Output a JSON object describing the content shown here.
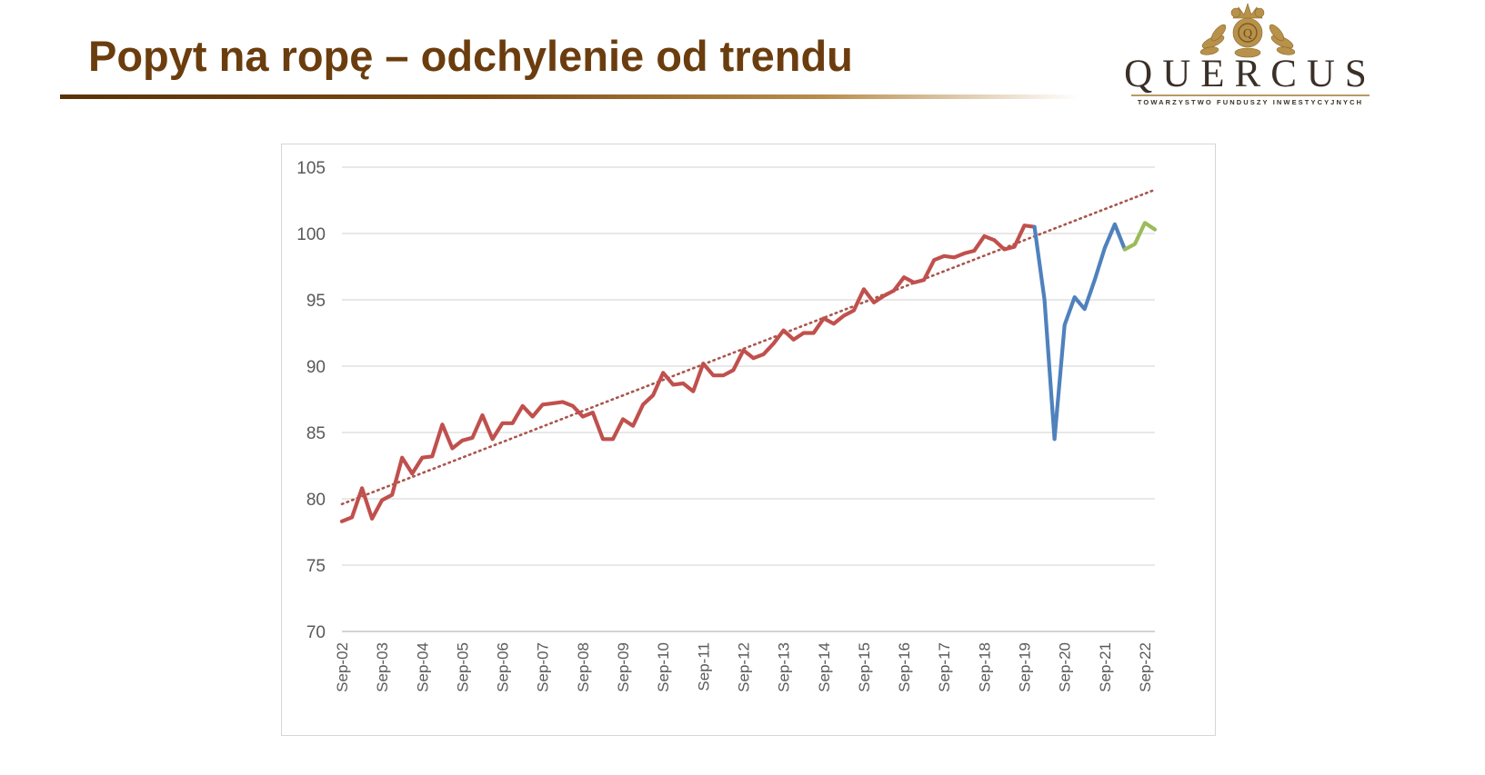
{
  "slide": {
    "title": "Popyt na ropę – odchylenie od trendu"
  },
  "logo": {
    "name": "QUERCUS",
    "subtitle": "TOWARZYSTWO FUNDUSZY INWESTYCYJNYCH"
  },
  "colors": {
    "title": "#6b3d0e",
    "series_historical": "#c0504d",
    "series_covid": "#4f81bd",
    "series_forecast": "#9bbb59",
    "trend": "#a9554d",
    "grid": "#d9d9d9"
  },
  "chart_data": {
    "type": "line",
    "title": "",
    "xlabel": "",
    "ylabel": "",
    "ylim": [
      70,
      105
    ],
    "yticks": [
      "70",
      "75",
      "80",
      "85",
      "90",
      "95",
      "100",
      "105"
    ],
    "grid": "horizontal",
    "x_tick_labels": [
      "Sep-02",
      "Sep-03",
      "Sep-04",
      "Sep-05",
      "Sep-06",
      "Sep-07",
      "Sep-08",
      "Sep-09",
      "Sep-10",
      "Sep-11",
      "Sep-12",
      "Sep-13",
      "Sep-14",
      "Sep-15",
      "Sep-16",
      "Sep-17",
      "Sep-18",
      "Sep-19",
      "Sep-20",
      "Sep-21",
      "Sep-22"
    ],
    "x_start": "Sep-02",
    "x_step": "quarter",
    "series": [
      {
        "name": "",
        "color": "#c0504d",
        "start_index": 0,
        "values": [
          78.3,
          78.6,
          80.8,
          78.5,
          79.9,
          80.3,
          83.1,
          81.9,
          83.1,
          83.2,
          85.6,
          83.8,
          84.4,
          84.6,
          86.3,
          84.5,
          85.7,
          85.7,
          87.0,
          86.2,
          87.1,
          87.2,
          87.3,
          87.0,
          86.2,
          86.5,
          84.5,
          84.5,
          86.0,
          85.5,
          87.1,
          87.8,
          89.5,
          88.6,
          88.7,
          88.1,
          90.2,
          89.3,
          89.3,
          89.7,
          91.2,
          90.6,
          90.9,
          91.7,
          92.7,
          92.0,
          92.5,
          92.5,
          93.6,
          93.2,
          93.8,
          94.2,
          95.8,
          94.8,
          95.3,
          95.7,
          96.7,
          96.3,
          96.5,
          98.0,
          98.3,
          98.2,
          98.5,
          98.7,
          99.8,
          99.5,
          98.8,
          99.0,
          100.6,
          100.5
        ]
      },
      {
        "name": "",
        "color": "#4f81bd",
        "start_index": 69,
        "values": [
          100.5,
          95.0,
          84.5,
          93.1,
          95.2,
          94.3,
          96.5,
          98.9,
          100.7,
          98.8
        ]
      },
      {
        "name": "",
        "color": "#9bbb59",
        "start_index": 78,
        "values": [
          98.8,
          99.2,
          100.8,
          100.3
        ]
      }
    ],
    "trendline": {
      "style": "dotted",
      "color": "#a9554d",
      "start": {
        "index": 0,
        "value": 79.6
      },
      "end": {
        "index": 81,
        "value": 103.3
      }
    }
  }
}
